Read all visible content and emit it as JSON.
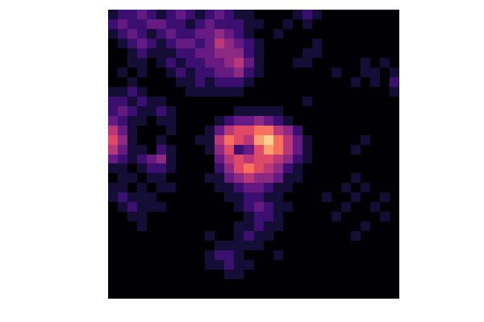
{
  "chart_data": {
    "type": "heatmap",
    "tick_labels": false,
    "color": "magma",
    "zlim": [
      0,
      10
    ],
    "values": [
      [
        1,
        2,
        2,
        3,
        2,
        1,
        2,
        3,
        2,
        1,
        2,
        3,
        2,
        1,
        1,
        0,
        0,
        0,
        0,
        1,
        2,
        1,
        0,
        0,
        0,
        0,
        0,
        0,
        0,
        0
      ],
      [
        2,
        3,
        2,
        2,
        3,
        3,
        2,
        2,
        1,
        2,
        3,
        2,
        2,
        2,
        1,
        1,
        0,
        0,
        1,
        0,
        1,
        0,
        0,
        0,
        0,
        0,
        0,
        0,
        0,
        0
      ],
      [
        1,
        2,
        3,
        2,
        1,
        2,
        3,
        2,
        2,
        3,
        3,
        4,
        3,
        2,
        1,
        0,
        0,
        1,
        0,
        0,
        0,
        0,
        0,
        0,
        0,
        0,
        0,
        0,
        0,
        0
      ],
      [
        0,
        1,
        2,
        3,
        2,
        1,
        2,
        3,
        3,
        2,
        3,
        5,
        4,
        3,
        2,
        1,
        0,
        0,
        0,
        0,
        0,
        1,
        0,
        0,
        0,
        0,
        0,
        0,
        0,
        0
      ],
      [
        0,
        0,
        1,
        2,
        1,
        1,
        1,
        2,
        2,
        3,
        3,
        4,
        4,
        4,
        2,
        1,
        0,
        0,
        0,
        0,
        1,
        1,
        0,
        0,
        0,
        0,
        0,
        0,
        0,
        0
      ],
      [
        0,
        0,
        1,
        1,
        0,
        1,
        2,
        1,
        2,
        2,
        3,
        3,
        4,
        5,
        3,
        1,
        0,
        0,
        0,
        1,
        1,
        0,
        0,
        0,
        0,
        0,
        1,
        0,
        1,
        0
      ],
      [
        0,
        1,
        0,
        1,
        0,
        0,
        1,
        2,
        1,
        2,
        2,
        3,
        3,
        4,
        2,
        1,
        0,
        0,
        0,
        0,
        0,
        0,
        0,
        1,
        0,
        0,
        1,
        1,
        0,
        1
      ],
      [
        0,
        0,
        1,
        0,
        0,
        0,
        0,
        1,
        1,
        2,
        1,
        2,
        2,
        2,
        1,
        0,
        0,
        0,
        0,
        0,
        0,
        0,
        0,
        0,
        0,
        1,
        0,
        1,
        0,
        2
      ],
      [
        1,
        1,
        2,
        1,
        0,
        0,
        0,
        0,
        1,
        1,
        1,
        1,
        1,
        1,
        0,
        0,
        0,
        0,
        0,
        0,
        0,
        0,
        0,
        0,
        0,
        0,
        0,
        0,
        0,
        1
      ],
      [
        2,
        2,
        1,
        2,
        1,
        1,
        0,
        0,
        0,
        0,
        0,
        0,
        0,
        0,
        0,
        0,
        0,
        0,
        0,
        0,
        1,
        0,
        0,
        0,
        0,
        0,
        0,
        0,
        0,
        0
      ],
      [
        2,
        3,
        2,
        1,
        1,
        2,
        1,
        0,
        0,
        0,
        0,
        0,
        0,
        1,
        1,
        1,
        1,
        1,
        0,
        0,
        0,
        0,
        0,
        0,
        0,
        0,
        0,
        0,
        0,
        0
      ],
      [
        3,
        2,
        1,
        1,
        0,
        1,
        1,
        0,
        0,
        0,
        0,
        1,
        2,
        3,
        3,
        4,
        3,
        2,
        1,
        0,
        0,
        0,
        0,
        0,
        0,
        0,
        0,
        0,
        0,
        0
      ],
      [
        5,
        3,
        1,
        0,
        0,
        0,
        1,
        0,
        0,
        0,
        1,
        3,
        5,
        6,
        6,
        7,
        7,
        5,
        4,
        2,
        0,
        0,
        0,
        0,
        0,
        0,
        0,
        0,
        0,
        0
      ],
      [
        6,
        4,
        1,
        0,
        0,
        1,
        0,
        0,
        0,
        1,
        1,
        5,
        7,
        6,
        5,
        8,
        9,
        7,
        5,
        3,
        1,
        0,
        0,
        0,
        0,
        0,
        1,
        0,
        0,
        0
      ],
      [
        5,
        3,
        1,
        1,
        0,
        2,
        1,
        0,
        0,
        0,
        1,
        4,
        6,
        2,
        3,
        6,
        8,
        7,
        5,
        3,
        1,
        0,
        0,
        0,
        0,
        1,
        0,
        0,
        0,
        0
      ],
      [
        3,
        2,
        1,
        2,
        3,
        4,
        1,
        0,
        0,
        0,
        0,
        3,
        5,
        6,
        5,
        6,
        6,
        5,
        4,
        2,
        1,
        0,
        0,
        0,
        0,
        0,
        0,
        0,
        0,
        0
      ],
      [
        1,
        1,
        0,
        1,
        2,
        2,
        1,
        0,
        0,
        0,
        0,
        2,
        4,
        6,
        7,
        6,
        5,
        4,
        2,
        1,
        0,
        0,
        0,
        0,
        0,
        0,
        0,
        0,
        0,
        0
      ],
      [
        0,
        1,
        1,
        0,
        1,
        1,
        0,
        0,
        0,
        0,
        1,
        1,
        3,
        4,
        5,
        4,
        4,
        3,
        1,
        1,
        0,
        0,
        0,
        0,
        0,
        1,
        0,
        0,
        0,
        0
      ],
      [
        1,
        1,
        0,
        1,
        0,
        1,
        1,
        0,
        0,
        0,
        0,
        1,
        1,
        2,
        3,
        3,
        2,
        1,
        1,
        0,
        0,
        0,
        0,
        0,
        1,
        0,
        1,
        0,
        0,
        0
      ],
      [
        1,
        2,
        1,
        1,
        1,
        0,
        0,
        0,
        0,
        0,
        0,
        0,
        1,
        1,
        2,
        2,
        1,
        1,
        0,
        0,
        0,
        0,
        1,
        0,
        0,
        1,
        0,
        0,
        1,
        0
      ],
      [
        0,
        1,
        2,
        1,
        1,
        1,
        0,
        0,
        0,
        0,
        0,
        0,
        0,
        1,
        2,
        3,
        2,
        1,
        1,
        0,
        0,
        0,
        0,
        0,
        1,
        0,
        0,
        1,
        0,
        0
      ],
      [
        0,
        0,
        1,
        1,
        0,
        0,
        0,
        0,
        0,
        0,
        0,
        0,
        0,
        0,
        1,
        2,
        2,
        1,
        0,
        0,
        0,
        0,
        0,
        1,
        0,
        0,
        0,
        0,
        1,
        0
      ],
      [
        0,
        0,
        0,
        1,
        0,
        0,
        0,
        0,
        0,
        0,
        0,
        0,
        0,
        1,
        1,
        2,
        1,
        1,
        0,
        0,
        0,
        0,
        0,
        0,
        0,
        0,
        1,
        0,
        0,
        0
      ],
      [
        0,
        0,
        0,
        0,
        0,
        0,
        0,
        0,
        0,
        0,
        1,
        0,
        0,
        1,
        2,
        1,
        1,
        0,
        0,
        0,
        0,
        0,
        0,
        0,
        0,
        1,
        0,
        0,
        0,
        0
      ],
      [
        0,
        0,
        0,
        0,
        0,
        0,
        0,
        0,
        0,
        0,
        0,
        1,
        1,
        1,
        1,
        1,
        0,
        0,
        0,
        0,
        0,
        0,
        0,
        0,
        0,
        0,
        0,
        0,
        0,
        0
      ],
      [
        0,
        0,
        0,
        0,
        0,
        0,
        0,
        0,
        0,
        0,
        1,
        2,
        2,
        1,
        0,
        0,
        0,
        1,
        0,
        0,
        0,
        0,
        0,
        0,
        0,
        0,
        0,
        0,
        0,
        0
      ],
      [
        0,
        0,
        0,
        0,
        0,
        0,
        0,
        0,
        0,
        0,
        1,
        1,
        2,
        1,
        1,
        0,
        0,
        0,
        0,
        0,
        0,
        0,
        0,
        0,
        0,
        0,
        0,
        0,
        0,
        0
      ],
      [
        0,
        0,
        0,
        0,
        0,
        0,
        0,
        0,
        0,
        0,
        0,
        0,
        1,
        1,
        0,
        0,
        0,
        0,
        0,
        0,
        0,
        0,
        0,
        0,
        0,
        0,
        0,
        0,
        0,
        0
      ],
      [
        0,
        0,
        0,
        0,
        0,
        0,
        0,
        0,
        0,
        0,
        0,
        0,
        0,
        0,
        0,
        0,
        0,
        0,
        0,
        0,
        0,
        0,
        0,
        0,
        0,
        0,
        0,
        0,
        0,
        0
      ],
      [
        0,
        0,
        0,
        0,
        0,
        0,
        0,
        0,
        0,
        0,
        0,
        0,
        0,
        0,
        0,
        0,
        0,
        0,
        0,
        0,
        0,
        0,
        0,
        0,
        0,
        0,
        0,
        0,
        0,
        0
      ]
    ]
  }
}
